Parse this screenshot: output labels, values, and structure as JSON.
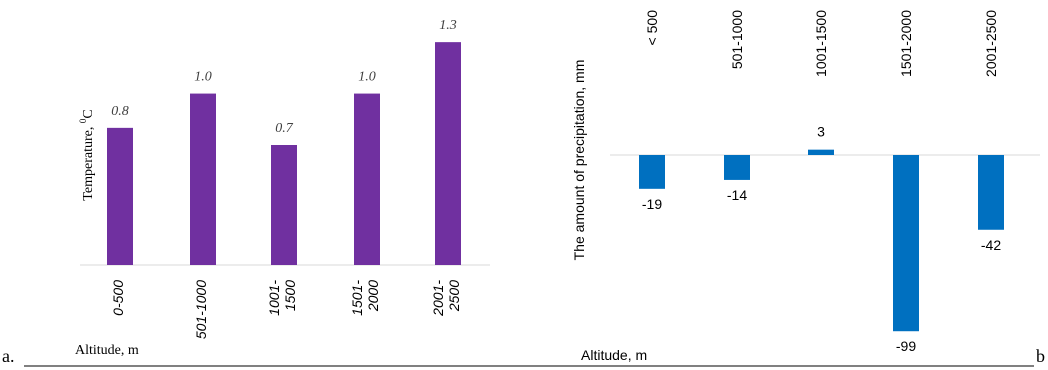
{
  "panel_labels": {
    "left": "a.",
    "right": "b"
  },
  "chart_data": [
    {
      "type": "bar",
      "ylabel_main": "Temperature, ",
      "ylabel_sup": "0",
      "ylabel_unit": "C",
      "xlabel": "Altitude, m",
      "categories": [
        [
          "0-500"
        ],
        [
          "501-1000"
        ],
        [
          "1001-",
          "1500"
        ],
        [
          "1501-",
          "2000"
        ],
        [
          "2001-",
          "2500"
        ]
      ],
      "values": [
        0.8,
        1.0,
        0.7,
        1.0,
        1.3
      ],
      "data_labels": [
        "0.8",
        "1.0",
        "0.7",
        "1.0",
        "1.3"
      ],
      "ylim": [
        0,
        1.4
      ],
      "bar_color": "#7030A0",
      "grid": false
    },
    {
      "type": "bar",
      "ylabel": "The amount of precipitation, mm",
      "xlabel": "Altitude, m",
      "categories": [
        "< 500",
        "501-1000",
        "1001-1500",
        "1501-2000",
        "2001-2500"
      ],
      "values": [
        -19,
        -14,
        3,
        -99,
        -42
      ],
      "data_labels": [
        "-19",
        "-14",
        "3",
        "-99",
        "-42"
      ],
      "ylim": [
        -100,
        0
      ],
      "bar_color": "#0070C0",
      "grid": false
    }
  ]
}
